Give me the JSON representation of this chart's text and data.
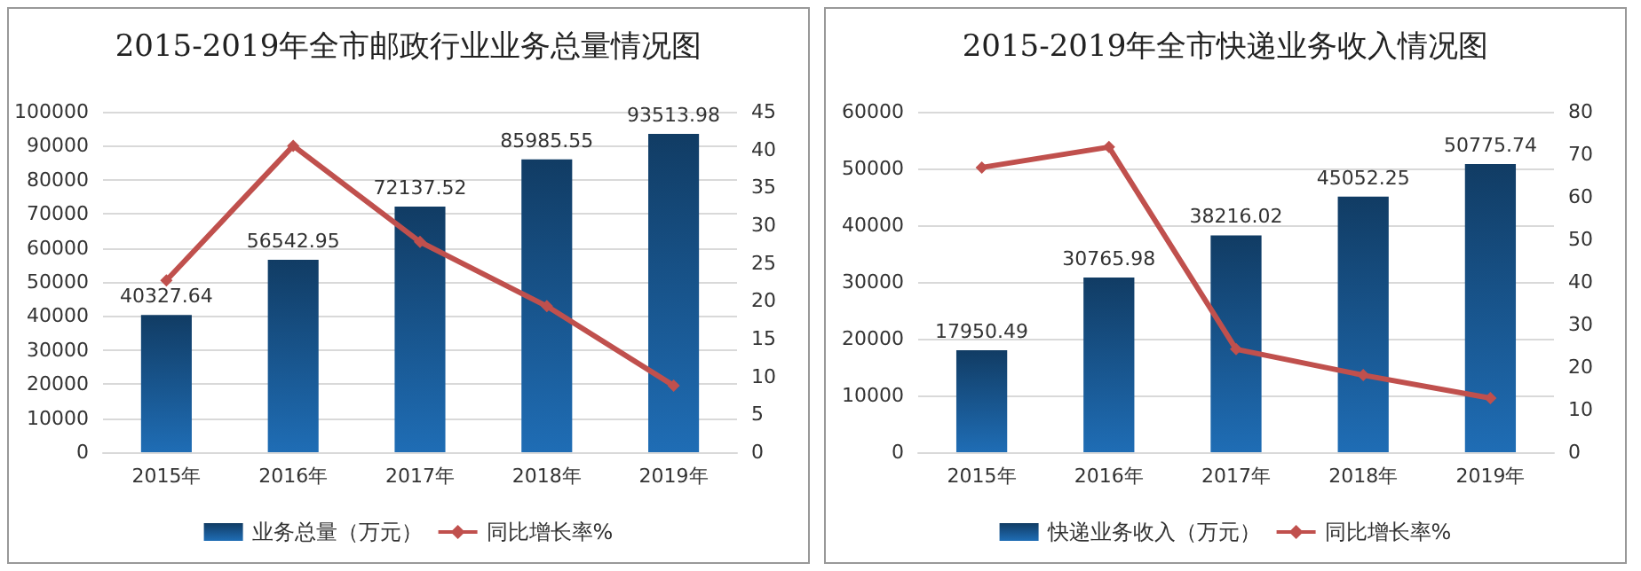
{
  "chart_data": [
    {
      "type": "bar",
      "title": "2015-2019年全市邮政行业业务总量情况图",
      "categories": [
        "2015年",
        "2016年",
        "2017年",
        "2018年",
        "2019年"
      ],
      "series": [
        {
          "name": "业务总量（万元）",
          "color": "#1f6db5",
          "values": [
            40327.64,
            56542.95,
            72137.52,
            85985.55,
            93513.98
          ],
          "value_labels": [
            "40327.64",
            "56542.95",
            "72137.52",
            "85985.55",
            "93513.98"
          ]
        },
        {
          "name": "同比增长率%",
          "type": "line",
          "axis": "y2",
          "color": "#c0504d",
          "values": [
            22.7,
            40.5,
            27.8,
            19.3,
            8.8
          ]
        }
      ],
      "ylim": [
        0,
        100000
      ],
      "yticks": [
        0,
        10000,
        20000,
        30000,
        40000,
        50000,
        60000,
        70000,
        80000,
        90000,
        100000
      ],
      "y2lim": [
        0,
        45
      ],
      "y2ticks": [
        0,
        5,
        10,
        15,
        20,
        25,
        30,
        35,
        40,
        45
      ],
      "grid": "y",
      "legend": "bottom",
      "marker": "diamond"
    },
    {
      "type": "bar",
      "title": "2015-2019年全市快递业务收入情况图",
      "categories": [
        "2015年",
        "2016年",
        "2017年",
        "2018年",
        "2019年"
      ],
      "series": [
        {
          "name": "快递业务收入（万元）",
          "color": "#1f6db5",
          "values": [
            17950.49,
            30765.98,
            38216.02,
            45052.25,
            50775.74
          ],
          "value_labels": [
            "17950.49",
            "30765.98",
            "38216.02",
            "45052.25",
            "50775.74"
          ]
        },
        {
          "name": "同比增长率%",
          "type": "line",
          "axis": "y2",
          "color": "#c0504d",
          "values": [
            66.9,
            71.7,
            24.2,
            18.1,
            12.7
          ]
        }
      ],
      "ylim": [
        0,
        60000
      ],
      "yticks": [
        0,
        10000,
        20000,
        30000,
        40000,
        50000,
        60000
      ],
      "y2lim": [
        0,
        80
      ],
      "y2ticks": [
        0,
        10,
        20,
        30,
        40,
        50,
        60,
        70,
        80
      ],
      "grid": "y",
      "legend": "bottom",
      "marker": "diamond"
    }
  ]
}
